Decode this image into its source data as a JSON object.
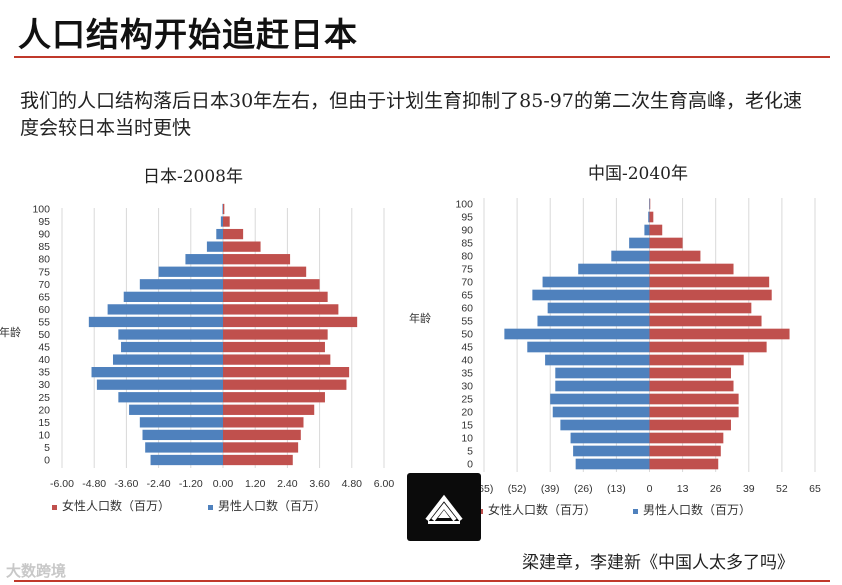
{
  "title": "人口结构开始追赶日本",
  "subtitle": "我们的人口结构落后日本30年左右，但由于计划生育抑制了85-97的第二次生育高峰，老化速度会较日本当时更快",
  "source": "梁建章，李建新《中国人太多了吗》",
  "brand": "大数跨境",
  "colors": {
    "male": "#4f81bd",
    "female": "#c0504d",
    "accent": "#c0392b",
    "grid": "#d9d9d9"
  },
  "chart_data": [
    {
      "type": "bar",
      "title": "日本-2008年",
      "ylabel": "年龄",
      "categories": [
        "0",
        "5",
        "10",
        "15",
        "20",
        "25",
        "30",
        "35",
        "40",
        "45",
        "50",
        "55",
        "60",
        "65",
        "70",
        "75",
        "80",
        "85",
        "90",
        "95",
        "100"
      ],
      "xticks": [
        "-6.00",
        "-4.80",
        "-3.60",
        "-2.40",
        "-1.20",
        "0.00",
        "1.20",
        "2.40",
        "3.60",
        "4.80",
        "6.00"
      ],
      "xlim": [
        -6,
        6
      ],
      "series": [
        {
          "name": "女性人口数（百万）",
          "values": [
            2.6,
            2.8,
            2.9,
            3.0,
            3.4,
            3.8,
            4.6,
            4.7,
            4.0,
            3.8,
            3.9,
            5.0,
            4.3,
            3.9,
            3.6,
            3.1,
            2.5,
            1.4,
            0.75,
            0.25,
            0.05
          ]
        },
        {
          "name": "男性人口数（百万）",
          "values": [
            -2.7,
            -2.9,
            -3.0,
            -3.1,
            -3.5,
            -3.9,
            -4.7,
            -4.9,
            -4.1,
            -3.8,
            -3.9,
            -5.0,
            -4.3,
            -3.7,
            -3.1,
            -2.4,
            -1.4,
            -0.6,
            -0.25,
            -0.08,
            -0.02
          ]
        }
      ]
    },
    {
      "type": "bar",
      "title": "中国-2040年",
      "ylabel": "年龄",
      "categories": [
        "0",
        "5",
        "10",
        "15",
        "20",
        "25",
        "30",
        "35",
        "40",
        "45",
        "50",
        "55",
        "60",
        "65",
        "70",
        "75",
        "80",
        "85",
        "90",
        "95",
        "100"
      ],
      "xticks": [
        "(65)",
        "(52)",
        "(39)",
        "(26)",
        "(13)",
        "0",
        "13",
        "26",
        "39",
        "52",
        "65"
      ],
      "xlim": [
        -65,
        65
      ],
      "series": [
        {
          "name": "女性人口数（百万）",
          "values": [
            27,
            28,
            29,
            32,
            35,
            35,
            33,
            32,
            37,
            46,
            55,
            44,
            40,
            48,
            47,
            33,
            20,
            13,
            5,
            1.5,
            0.3
          ]
        },
        {
          "name": "男性人口数（百万）",
          "values": [
            -29,
            -30,
            -31,
            -35,
            -38,
            -39,
            -37,
            -37,
            -41,
            -48,
            -57,
            -44,
            -40,
            -46,
            -42,
            -28,
            -15,
            -8,
            -2,
            -0.5,
            -0.1
          ]
        }
      ]
    }
  ]
}
